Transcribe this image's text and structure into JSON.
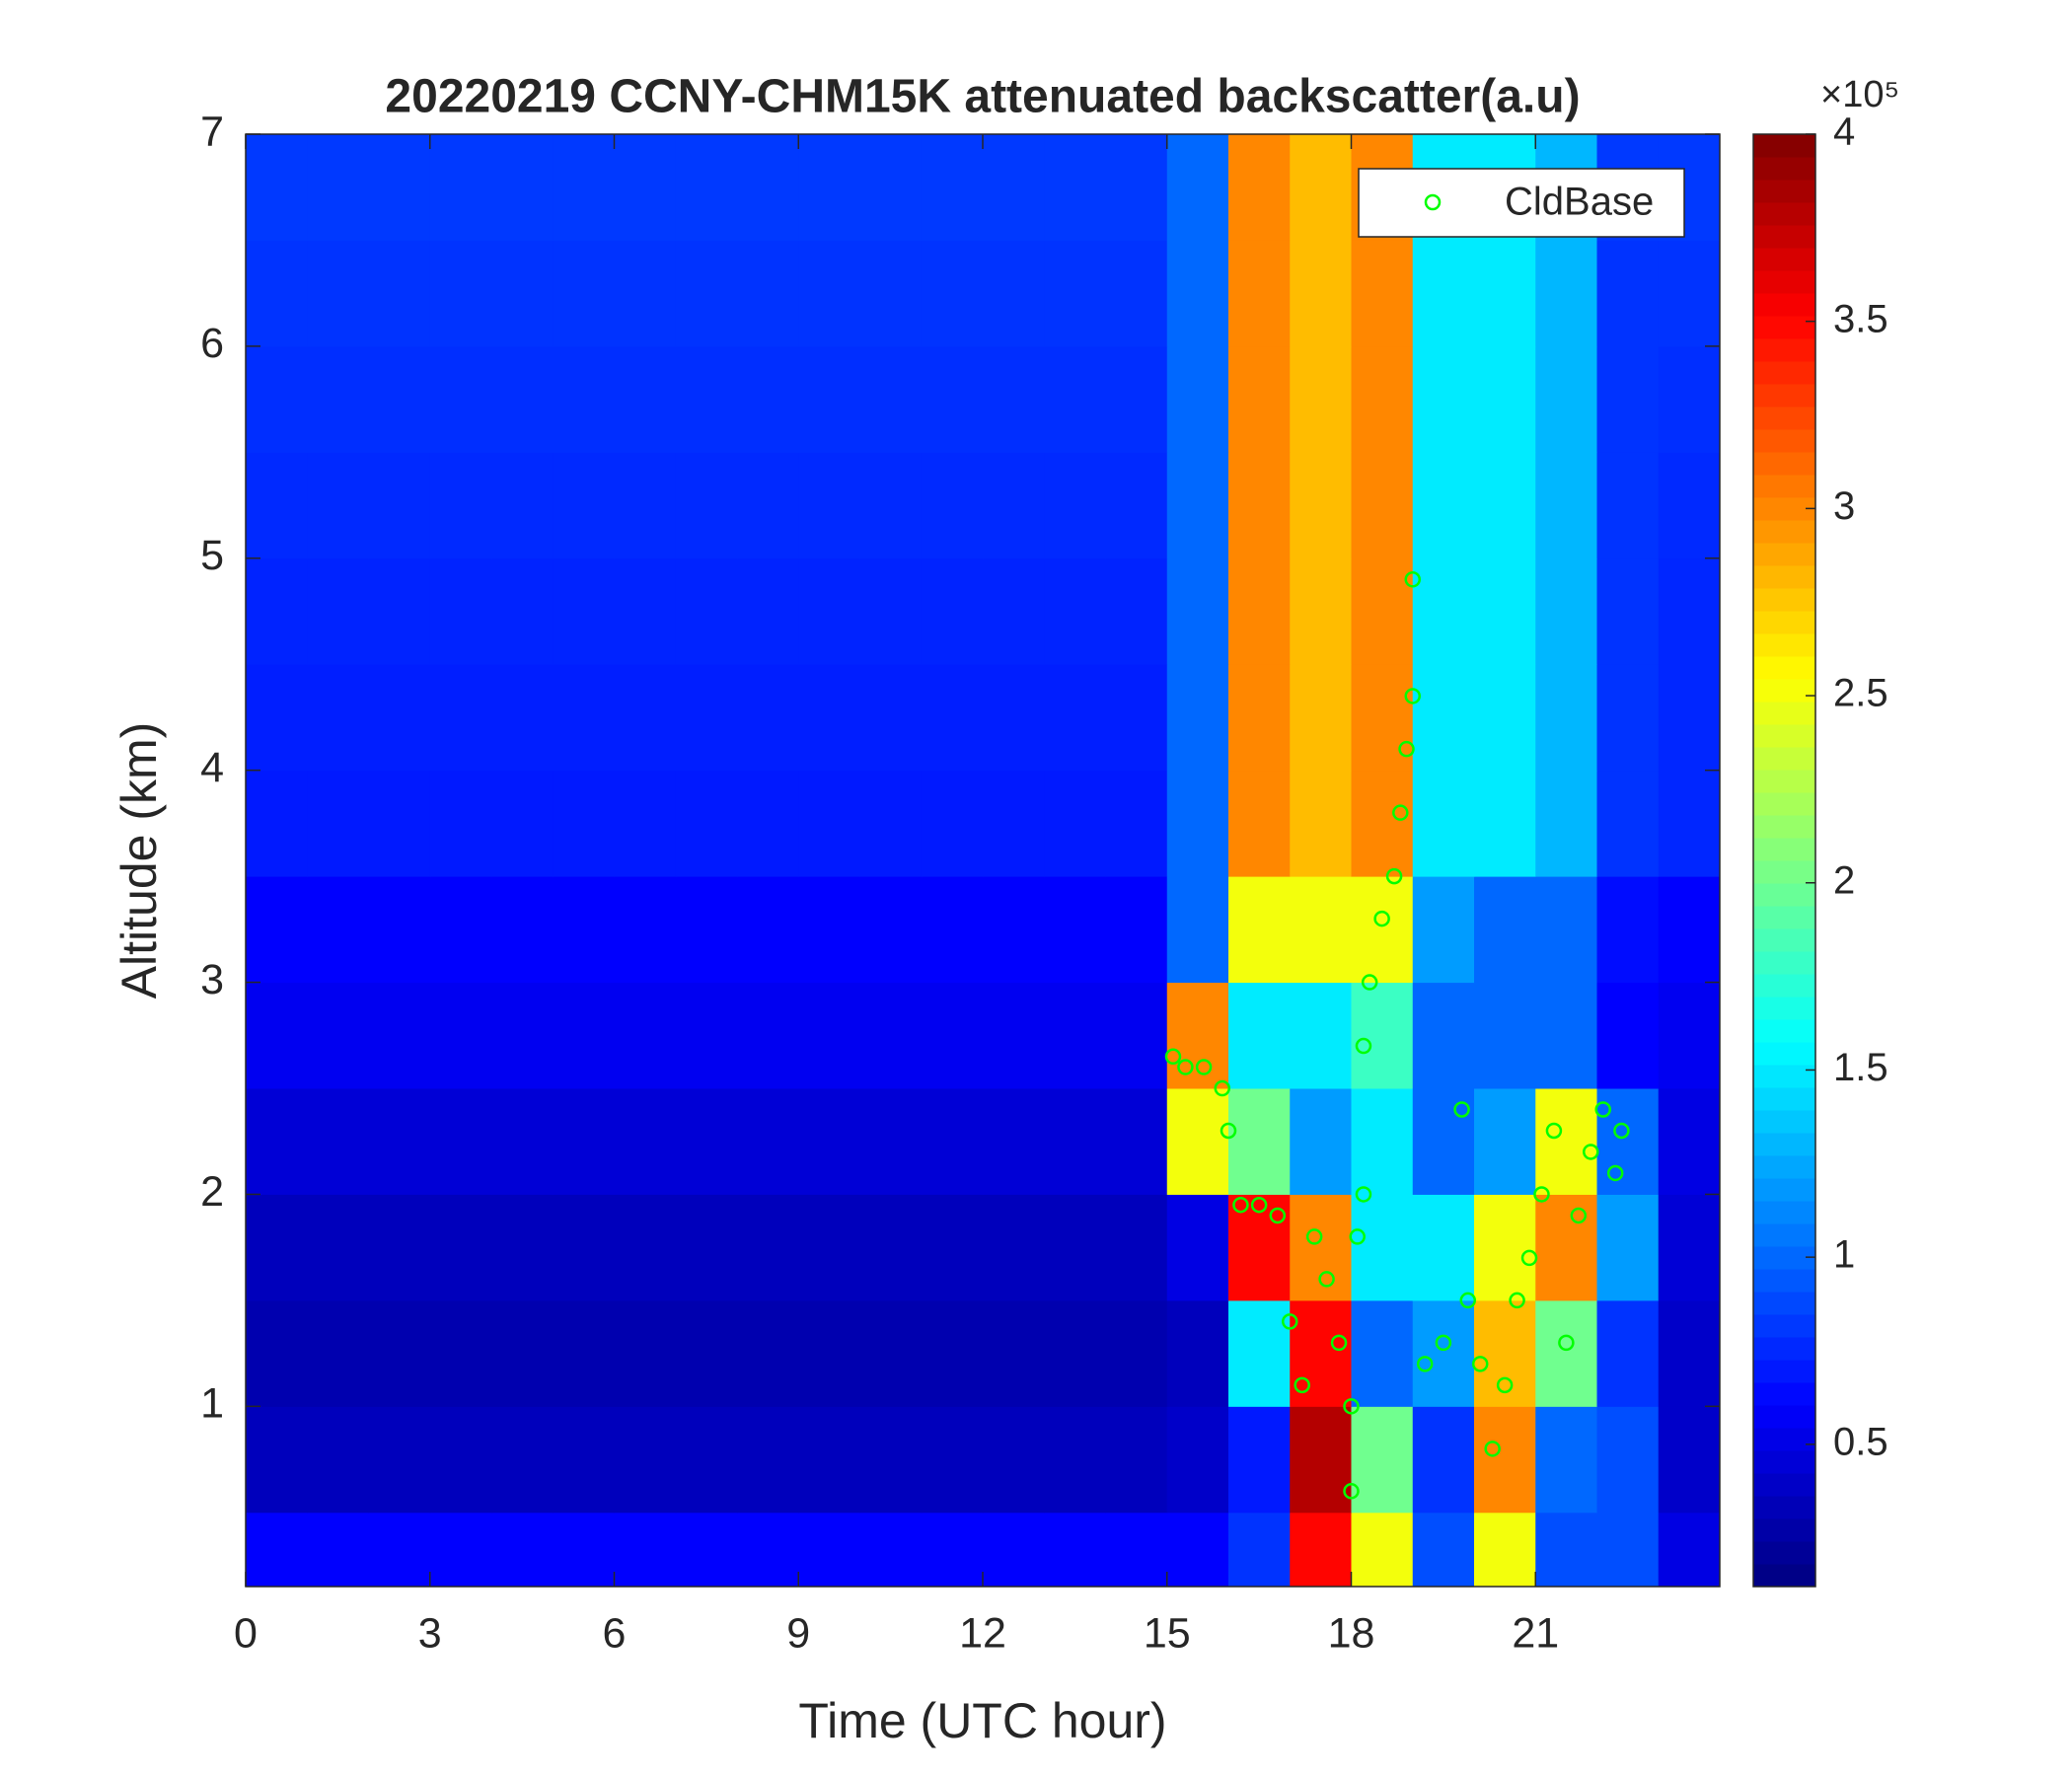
{
  "chart_data": {
    "type": "heatmap",
    "title": "20220219 CCNY-CHM15K attenuated backscatter(a.u)",
    "xlabel": "Time (UTC hour)",
    "ylabel": "Altitude (km)",
    "xlim": [
      0,
      24
    ],
    "ylim": [
      0.15,
      7
    ],
    "xticks": [
      0,
      3,
      6,
      9,
      12,
      15,
      18,
      21
    ],
    "yticks": [
      1,
      2,
      3,
      4,
      5,
      6,
      7
    ],
    "colormap": "jet",
    "clim": [
      0.12,
      4
    ],
    "cticks": [
      0.5,
      1,
      1.5,
      2,
      2.5,
      3,
      3.5,
      4
    ],
    "colorbar_exponent": "×10⁵",
    "x_edges": [
      0,
      1,
      2,
      3,
      4,
      5,
      6,
      7,
      8,
      9,
      10,
      11,
      12,
      13,
      14,
      15,
      16,
      17,
      18,
      19,
      20,
      21,
      22,
      23,
      24
    ],
    "y_edges": [
      0.15,
      0.5,
      1,
      1.5,
      2,
      2.5,
      3,
      3.5,
      4,
      4.5,
      5,
      5.5,
      6,
      6.5,
      7
    ],
    "z": [
      [
        0.6,
        0.6,
        0.6,
        0.6,
        0.6,
        0.6,
        0.6,
        0.6,
        0.6,
        0.6,
        0.6,
        0.6,
        0.6,
        0.6,
        0.6,
        0.6,
        0.8,
        3.5,
        2.5,
        0.9,
        2.5,
        0.9,
        0.9,
        0.5
      ],
      [
        0.35,
        0.35,
        0.35,
        0.35,
        0.35,
        0.35,
        0.35,
        0.35,
        0.35,
        0.35,
        0.35,
        0.35,
        0.35,
        0.35,
        0.35,
        0.4,
        0.7,
        3.8,
        2.0,
        0.8,
        3.0,
        1.0,
        0.9,
        0.4
      ],
      [
        0.3,
        0.3,
        0.3,
        0.3,
        0.3,
        0.3,
        0.3,
        0.3,
        0.3,
        0.3,
        0.3,
        0.3,
        0.3,
        0.3,
        0.3,
        0.35,
        1.5,
        3.5,
        1.0,
        1.2,
        2.8,
        2.0,
        0.8,
        0.4
      ],
      [
        0.35,
        0.35,
        0.35,
        0.35,
        0.35,
        0.35,
        0.35,
        0.35,
        0.35,
        0.35,
        0.35,
        0.35,
        0.35,
        0.35,
        0.35,
        0.5,
        3.5,
        3.0,
        1.5,
        1.5,
        2.5,
        3.0,
        1.2,
        0.45
      ],
      [
        0.45,
        0.45,
        0.45,
        0.45,
        0.45,
        0.45,
        0.45,
        0.45,
        0.45,
        0.45,
        0.45,
        0.45,
        0.45,
        0.45,
        0.45,
        2.5,
        2.0,
        1.2,
        1.5,
        1.0,
        1.2,
        2.5,
        1.0,
        0.5
      ],
      [
        0.55,
        0.55,
        0.55,
        0.55,
        0.55,
        0.55,
        0.55,
        0.55,
        0.55,
        0.55,
        0.55,
        0.55,
        0.55,
        0.55,
        0.55,
        3.0,
        1.5,
        1.5,
        1.8,
        1.0,
        1.0,
        1.0,
        0.6,
        0.55
      ],
      [
        0.6,
        0.6,
        0.6,
        0.6,
        0.6,
        0.6,
        0.6,
        0.6,
        0.6,
        0.6,
        0.6,
        0.6,
        0.6,
        0.6,
        0.6,
        1.0,
        2.5,
        2.5,
        2.5,
        1.2,
        1.0,
        1.0,
        0.65,
        0.6
      ],
      [
        0.7,
        0.7,
        0.7,
        0.7,
        0.7,
        0.7,
        0.7,
        0.7,
        0.7,
        0.7,
        0.7,
        0.7,
        0.7,
        0.7,
        0.7,
        1.0,
        3.0,
        2.8,
        3.0,
        1.5,
        1.5,
        1.3,
        0.8,
        0.75
      ],
      [
        0.72,
        0.72,
        0.72,
        0.72,
        0.72,
        0.72,
        0.72,
        0.72,
        0.72,
        0.72,
        0.72,
        0.72,
        0.72,
        0.72,
        0.72,
        1.0,
        3.0,
        2.8,
        3.0,
        1.5,
        1.5,
        1.3,
        0.8,
        0.75
      ],
      [
        0.74,
        0.74,
        0.74,
        0.74,
        0.74,
        0.74,
        0.74,
        0.74,
        0.74,
        0.74,
        0.74,
        0.74,
        0.74,
        0.74,
        0.74,
        1.0,
        3.0,
        2.8,
        3.0,
        1.5,
        1.5,
        1.3,
        0.8,
        0.75
      ],
      [
        0.76,
        0.76,
        0.76,
        0.76,
        0.76,
        0.76,
        0.76,
        0.76,
        0.76,
        0.76,
        0.76,
        0.76,
        0.76,
        0.76,
        0.76,
        1.0,
        3.0,
        2.8,
        3.0,
        1.5,
        1.5,
        1.3,
        0.8,
        0.76
      ],
      [
        0.78,
        0.78,
        0.78,
        0.78,
        0.78,
        0.78,
        0.78,
        0.78,
        0.78,
        0.78,
        0.78,
        0.78,
        0.78,
        0.78,
        0.78,
        1.0,
        3.0,
        2.8,
        3.0,
        1.5,
        1.5,
        1.3,
        0.8,
        0.78
      ],
      [
        0.8,
        0.8,
        0.8,
        0.8,
        0.8,
        0.8,
        0.8,
        0.8,
        0.8,
        0.8,
        0.8,
        0.8,
        0.8,
        0.8,
        0.8,
        1.0,
        3.0,
        2.8,
        3.0,
        1.5,
        1.5,
        1.3,
        0.8,
        0.8
      ],
      [
        0.82,
        0.82,
        0.82,
        0.82,
        0.82,
        0.82,
        0.82,
        0.82,
        0.82,
        0.82,
        0.82,
        0.82,
        0.82,
        0.82,
        0.82,
        1.0,
        3.0,
        2.8,
        3.0,
        1.5,
        1.5,
        1.3,
        0.82,
        0.82
      ]
    ],
    "series": [
      {
        "name": "CldBase",
        "color": "#00ff00",
        "legend": "northeast",
        "x": [
          15.1,
          15.3,
          15.6,
          15.9,
          16.0,
          16.2,
          16.5,
          16.8,
          17.0,
          17.2,
          17.4,
          17.6,
          17.8,
          18.0,
          18.0,
          18.1,
          18.2,
          18.2,
          18.3,
          18.5,
          18.7,
          18.8,
          18.9,
          19.0,
          19.0,
          19.2,
          19.5,
          19.8,
          19.9,
          20.1,
          20.3,
          20.5,
          20.7,
          20.9,
          21.1,
          21.3,
          21.5,
          21.7,
          21.9,
          22.1,
          22.3,
          22.4
        ],
        "values": [
          2.65,
          2.6,
          2.6,
          2.5,
          2.3,
          1.95,
          1.95,
          1.9,
          1.4,
          1.1,
          1.8,
          1.6,
          1.3,
          1.0,
          0.6,
          1.8,
          2.0,
          2.7,
          3.0,
          3.3,
          3.5,
          3.8,
          4.1,
          4.35,
          4.9,
          1.2,
          1.3,
          2.4,
          1.5,
          1.2,
          0.8,
          1.1,
          1.5,
          1.7,
          2.0,
          2.3,
          1.3,
          1.9,
          2.2,
          2.4,
          2.1,
          2.3
        ]
      }
    ]
  }
}
